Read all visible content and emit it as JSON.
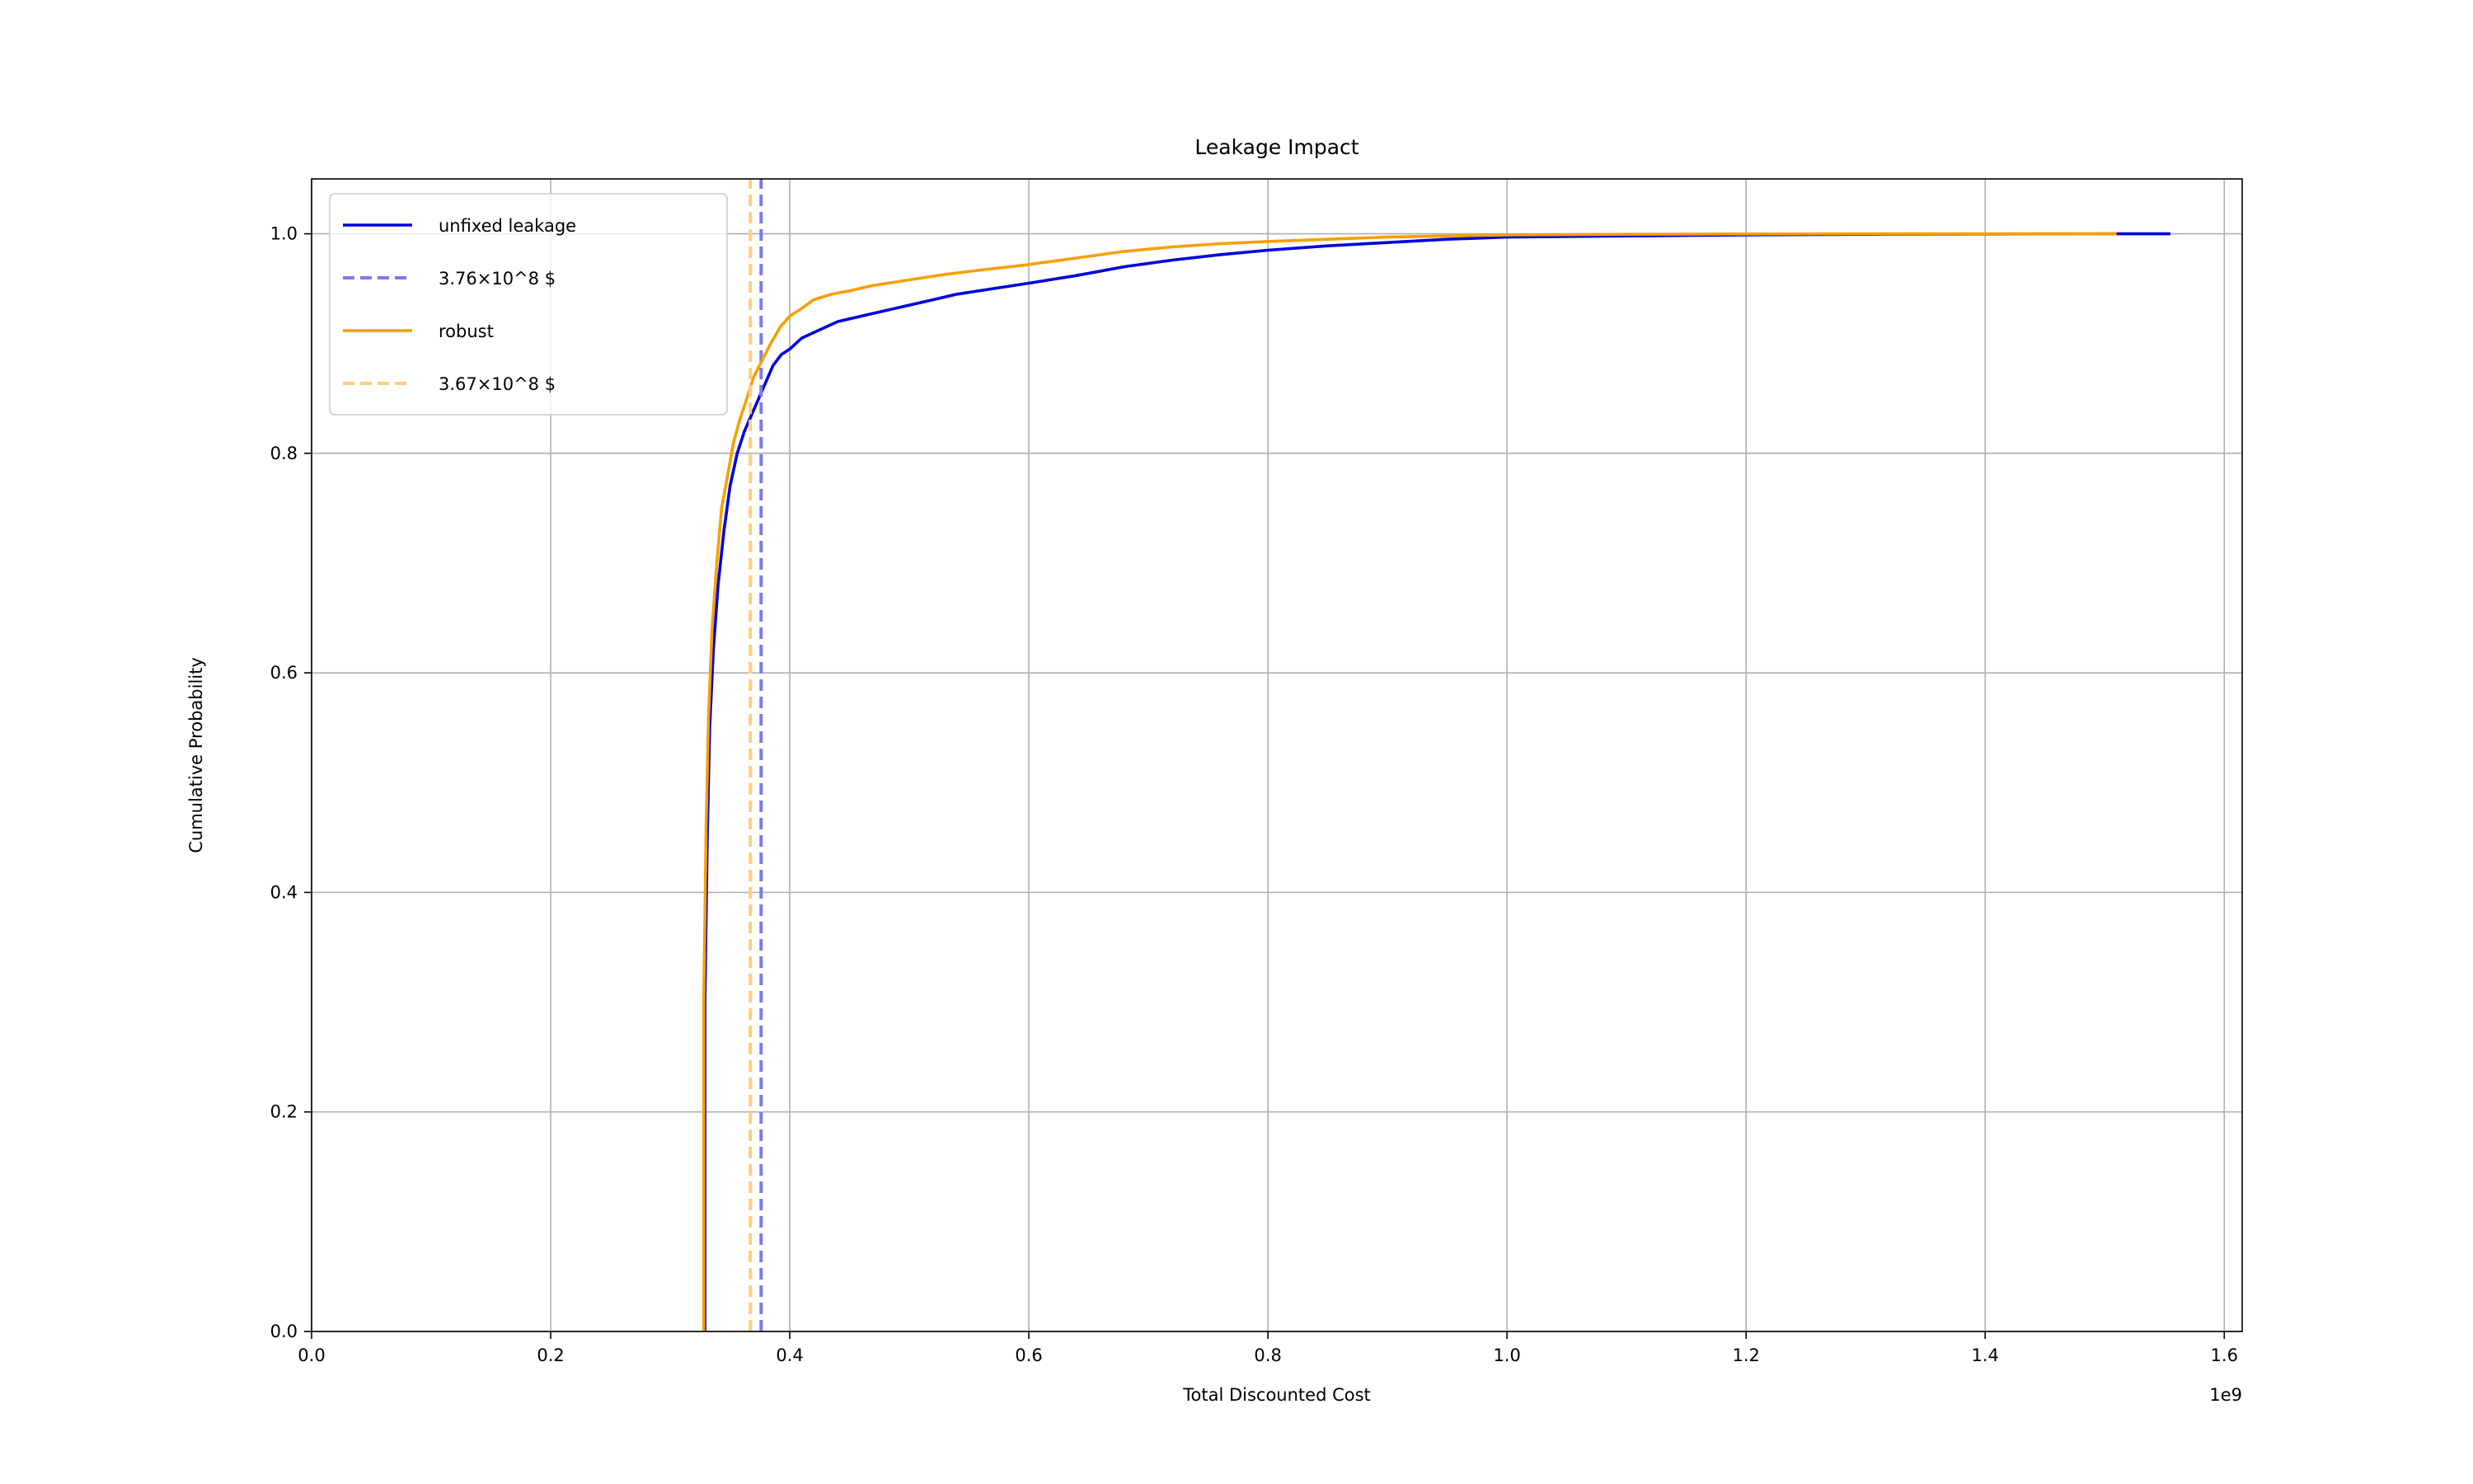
{
  "chart_data": {
    "type": "line",
    "title": "Leakage Impact",
    "xlabel": "Total Discounted Cost",
    "ylabel": "Cumulative Probability",
    "x_offset_label": "1e9",
    "xlim": [
      0,
      1.615
    ],
    "ylim": [
      0,
      1.05
    ],
    "x_unit_multiplier": 1000000000,
    "xticks": [
      0.0,
      0.2,
      0.4,
      0.6,
      0.8,
      1.0,
      1.2,
      1.4,
      1.6
    ],
    "xtick_labels": [
      "0.0",
      "0.2",
      "0.4",
      "0.6",
      "0.8",
      "1.0",
      "1.2",
      "1.4",
      "1.6"
    ],
    "yticks": [
      0.0,
      0.2,
      0.4,
      0.6,
      0.8,
      1.0
    ],
    "ytick_labels": [
      "0.0",
      "0.2",
      "0.4",
      "0.6",
      "0.8",
      "1.0"
    ],
    "grid": true,
    "legend_position": "top-left",
    "series": [
      {
        "name": "unfixed leakage",
        "color": "#0000dd",
        "style": "solid",
        "x": [
          0.329,
          0.329,
          0.331,
          0.333,
          0.336,
          0.34,
          0.345,
          0.35,
          0.356,
          0.362,
          0.368,
          0.374,
          0.38,
          0.386,
          0.393,
          0.4,
          0.41,
          0.42,
          0.43,
          0.44,
          0.46,
          0.48,
          0.5,
          0.52,
          0.54,
          0.57,
          0.6,
          0.64,
          0.68,
          0.72,
          0.76,
          0.8,
          0.85,
          0.9,
          0.95,
          1.0,
          1.1,
          1.2,
          1.3,
          1.4,
          1.5,
          1.555
        ],
        "y": [
          0.0,
          0.3,
          0.45,
          0.55,
          0.62,
          0.68,
          0.73,
          0.77,
          0.8,
          0.82,
          0.835,
          0.85,
          0.865,
          0.88,
          0.89,
          0.895,
          0.905,
          0.91,
          0.915,
          0.92,
          0.925,
          0.93,
          0.935,
          0.94,
          0.945,
          0.95,
          0.955,
          0.962,
          0.97,
          0.976,
          0.981,
          0.985,
          0.989,
          0.992,
          0.995,
          0.997,
          0.998,
          0.999,
          0.9995,
          0.9998,
          1.0,
          1.0
        ]
      },
      {
        "name": "3.76×10^8 $",
        "color": "#7b7bf2",
        "style": "dashed",
        "x": [
          0.376,
          0.376
        ],
        "y": [
          0,
          1.05
        ]
      },
      {
        "name": "robust",
        "color": "#f5a000",
        "style": "solid",
        "x": [
          0.328,
          0.328,
          0.33,
          0.332,
          0.335,
          0.339,
          0.343,
          0.348,
          0.353,
          0.358,
          0.364,
          0.37,
          0.377,
          0.384,
          0.392,
          0.4,
          0.41,
          0.42,
          0.435,
          0.45,
          0.47,
          0.5,
          0.53,
          0.56,
          0.6,
          0.64,
          0.68,
          0.72,
          0.76,
          0.8,
          0.85,
          0.9,
          0.95,
          1.0,
          1.1,
          1.2,
          1.3,
          1.4,
          1.51
        ],
        "y": [
          0.0,
          0.3,
          0.46,
          0.56,
          0.64,
          0.7,
          0.75,
          0.78,
          0.81,
          0.83,
          0.85,
          0.87,
          0.885,
          0.9,
          0.915,
          0.925,
          0.932,
          0.94,
          0.945,
          0.948,
          0.953,
          0.958,
          0.963,
          0.967,
          0.972,
          0.978,
          0.984,
          0.988,
          0.991,
          0.993,
          0.995,
          0.997,
          0.998,
          0.999,
          0.9995,
          0.9998,
          1.0,
          1.0,
          1.0
        ]
      },
      {
        "name": "3.67×10^8 $",
        "color": "#fccf7f",
        "style": "dashed",
        "x": [
          0.367,
          0.367
        ],
        "y": [
          0,
          1.05
        ]
      }
    ]
  }
}
